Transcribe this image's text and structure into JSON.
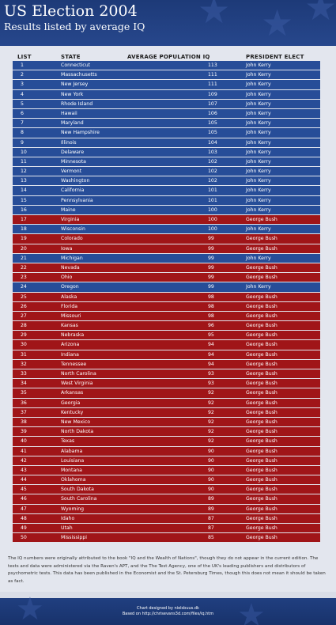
{
  "header": {
    "title": "US Election 2004",
    "subtitle": "Results listed by average IQ"
  },
  "colors": {
    "kerry": "#274d98",
    "bush": "#a01518",
    "header_bg": "#1d3a78"
  },
  "chart_data": {
    "type": "table",
    "columns": [
      "LIST",
      "STATE",
      "AVERAGE POPULATION IQ",
      "PRESIDENT ELECT"
    ],
    "rows": [
      {
        "rank": "1",
        "state": "Connecticut",
        "iq": "113",
        "president": "John Kerry"
      },
      {
        "rank": "2",
        "state": "Massachusetts",
        "iq": "111",
        "president": "John Kerry"
      },
      {
        "rank": "3",
        "state": "New Jersey",
        "iq": "111",
        "president": "John Kerry"
      },
      {
        "rank": "4",
        "state": "New York",
        "iq": "109",
        "president": "John Kerry"
      },
      {
        "rank": "5",
        "state": "Rhode Island",
        "iq": "107",
        "president": "John Kerry"
      },
      {
        "rank": "6",
        "state": "Hawaii",
        "iq": "106",
        "president": "John Kerry"
      },
      {
        "rank": "7",
        "state": "Maryland",
        "iq": "105",
        "president": "John Kerry"
      },
      {
        "rank": "8",
        "state": "New Hampshire",
        "iq": "105",
        "president": "John Kerry"
      },
      {
        "rank": "9",
        "state": "Illinois",
        "iq": "104",
        "president": "John Kerry"
      },
      {
        "rank": "10",
        "state": "Delaware",
        "iq": "103",
        "president": "John Kerry"
      },
      {
        "rank": "11",
        "state": "Minnesota",
        "iq": "102",
        "president": "John Kerry"
      },
      {
        "rank": "12",
        "state": "Vermont",
        "iq": "102",
        "president": "John Kerry"
      },
      {
        "rank": "13",
        "state": "Washington",
        "iq": "102",
        "president": "John Kerry"
      },
      {
        "rank": "14",
        "state": "California",
        "iq": "101",
        "president": "John Kerry"
      },
      {
        "rank": "15",
        "state": "Pennsylvania",
        "iq": "101",
        "president": "John Kerry"
      },
      {
        "rank": "16",
        "state": "Maine",
        "iq": "100",
        "president": "John Kerry"
      },
      {
        "rank": "17",
        "state": "Virginia",
        "iq": "100",
        "president": "George Bush"
      },
      {
        "rank": "18",
        "state": "Wisconsin",
        "iq": "100",
        "president": "John Kerry"
      },
      {
        "rank": "19",
        "state": "Colorado",
        "iq": "99",
        "president": "George Bush"
      },
      {
        "rank": "20",
        "state": "Iowa",
        "iq": "99",
        "president": "George Bush"
      },
      {
        "rank": "21",
        "state": "Michigan",
        "iq": "99",
        "president": "John Kerry"
      },
      {
        "rank": "22",
        "state": "Nevada",
        "iq": "99",
        "president": "George Bush"
      },
      {
        "rank": "23",
        "state": "Ohio",
        "iq": "99",
        "president": "George Bush"
      },
      {
        "rank": "24",
        "state": "Oregon",
        "iq": "99",
        "president": "John Kerry"
      },
      {
        "rank": "25",
        "state": "Alaska",
        "iq": "98",
        "president": "George Bush"
      },
      {
        "rank": "26",
        "state": "Florida",
        "iq": "98",
        "president": "George Bush"
      },
      {
        "rank": "27",
        "state": "Missouri",
        "iq": "98",
        "president": "George Bush"
      },
      {
        "rank": "28",
        "state": "Kansas",
        "iq": "96",
        "president": "George Bush"
      },
      {
        "rank": "29",
        "state": "Nebraska",
        "iq": "95",
        "president": "George Bush"
      },
      {
        "rank": "30",
        "state": "Arizona",
        "iq": "94",
        "president": "George Bush"
      },
      {
        "rank": "31",
        "state": "Indiana",
        "iq": "94",
        "president": "George Bush"
      },
      {
        "rank": "32",
        "state": "Tennessee",
        "iq": "94",
        "president": "George Bush"
      },
      {
        "rank": "33",
        "state": "North Carolina",
        "iq": "93",
        "president": "George Bush"
      },
      {
        "rank": "34",
        "state": "West Virginia",
        "iq": "93",
        "president": "George Bush"
      },
      {
        "rank": "35",
        "state": "Arkansas",
        "iq": "92",
        "president": "George Bush"
      },
      {
        "rank": "36",
        "state": "Georgia",
        "iq": "92",
        "president": "George Bush"
      },
      {
        "rank": "37",
        "state": "Kentucky",
        "iq": "92",
        "president": "George Bush"
      },
      {
        "rank": "38",
        "state": "New Mexico",
        "iq": "92",
        "president": "George Bush"
      },
      {
        "rank": "39",
        "state": "North Dakota",
        "iq": "92",
        "president": "George Bush"
      },
      {
        "rank": "40",
        "state": "Texas",
        "iq": "92",
        "president": "George Bush"
      },
      {
        "rank": "41",
        "state": "Alabama",
        "iq": "90",
        "president": "George Bush"
      },
      {
        "rank": "42",
        "state": "Louisiana",
        "iq": "90",
        "president": "George Bush"
      },
      {
        "rank": "43",
        "state": "Montana",
        "iq": "90",
        "president": "George Bush"
      },
      {
        "rank": "44",
        "state": "Oklahoma",
        "iq": "90",
        "president": "George Bush"
      },
      {
        "rank": "45",
        "state": "South Dakota",
        "iq": "90",
        "president": "George Bush"
      },
      {
        "rank": "46",
        "state": "South Carolina",
        "iq": "89",
        "president": "George Bush"
      },
      {
        "rank": "47",
        "state": "Wyoming",
        "iq": "89",
        "president": "George Bush"
      },
      {
        "rank": "48",
        "state": "Idaho",
        "iq": "87",
        "president": "George Bush"
      },
      {
        "rank": "49",
        "state": "Utah",
        "iq": "87",
        "president": "George Bush"
      },
      {
        "rank": "50",
        "state": "Mississippi",
        "iq": "85",
        "president": "George Bush"
      }
    ]
  },
  "footnote": "The IQ numbers were originally attributed to the book \"IQ and the Wealth of Nations\", though they do not appear in the current edition. The tests and data were administered via the Raven's APT, and the The Test Agency, one of the UK's leading publishers and distributors of psychometric tests. This data has been published in the Economist and the St. Petersburg Times, though this does not mean it should be taken as fact.",
  "footer": {
    "credit": "Chart designed by nielsbuus.dk",
    "source": "Based on http://chrisevans3d.com/files/iq.htm"
  }
}
